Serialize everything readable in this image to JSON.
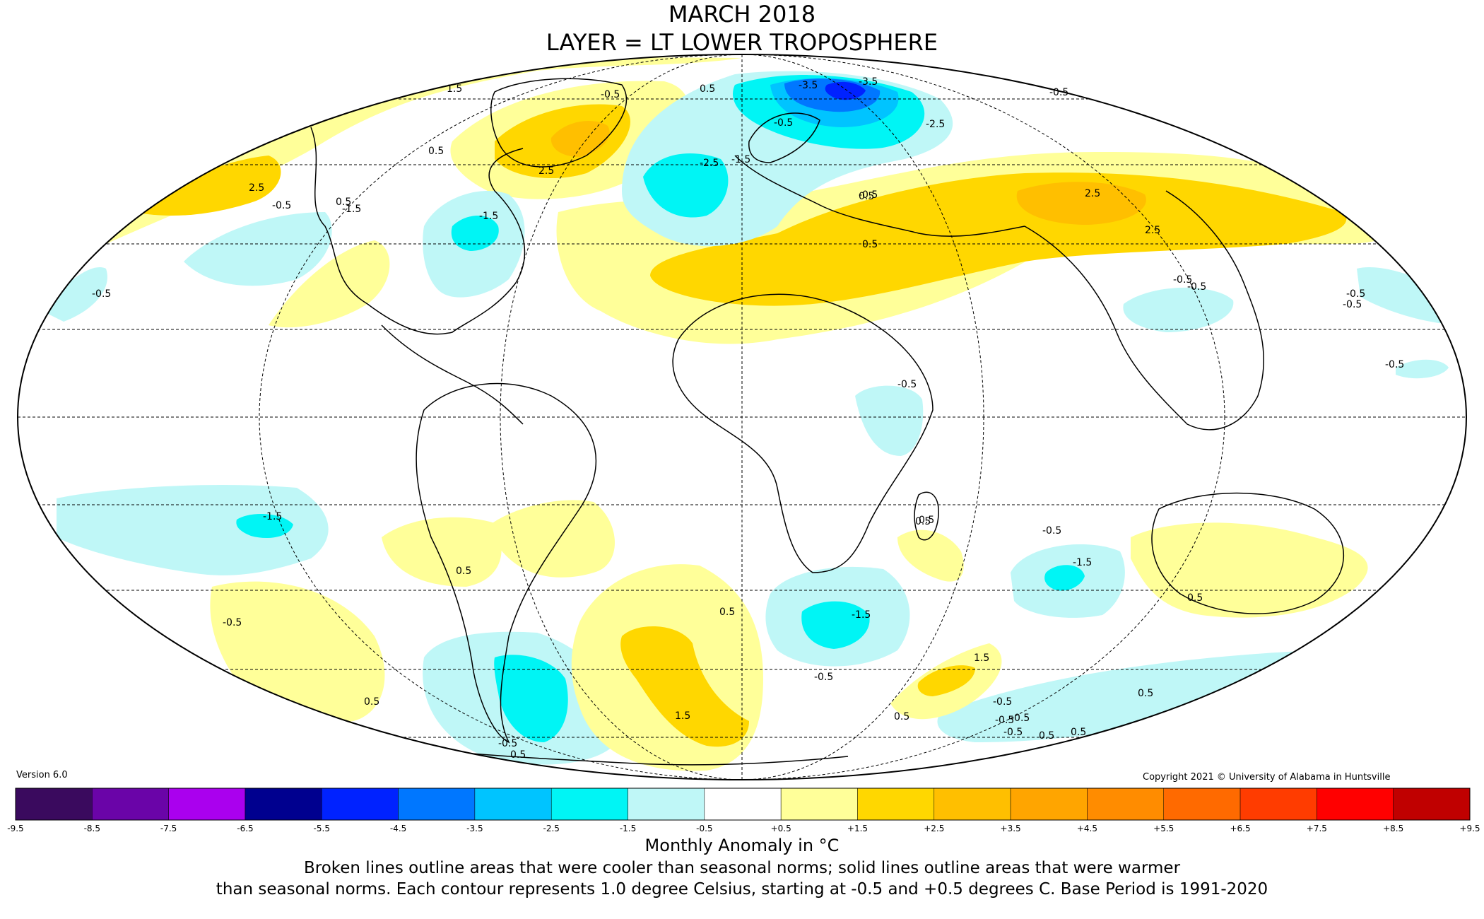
{
  "title_line1": "MARCH 2018",
  "title_line2": "LAYER = LT LOWER TROPOSPHERE",
  "version": "Version 6.0",
  "copyright": "Copyright 2021 © University of Alabama in Huntsville",
  "colorbar": {
    "label": "Monthly Anomaly in °C",
    "ticks": [
      "-9.5",
      "-8.5",
      "-7.5",
      "-6.5",
      "-5.5",
      "-4.5",
      "-3.5",
      "-2.5",
      "-1.5",
      "-0.5",
      "+0.5",
      "+1.5",
      "+2.5",
      "+3.5",
      "+4.5",
      "+5.5",
      "+6.5",
      "+7.5",
      "+8.5",
      "+9.5"
    ],
    "colors": [
      "#3a0a5e",
      "#6a04a8",
      "#aa00ee",
      "#00008f",
      "#0022ff",
      "#0077ff",
      "#00c4ff",
      "#00f5f5",
      "#bff7f7",
      "#ffffff",
      "#ffff99",
      "#ffd700",
      "#ffbf00",
      "#ffa500",
      "#ff8c00",
      "#ff6a00",
      "#ff3c00",
      "#ff0000",
      "#c00000"
    ]
  },
  "caption_line1": "Broken lines outline areas that were cooler than seasonal norms; solid lines outline areas that were warmer",
  "caption_line2": "than seasonal norms. Each contour represents 1.0 degree Celsius, starting at -0.5 and +0.5 degrees C. Base Period is 1991-2020",
  "map_colors": {
    "ocean": "#ffffff",
    "warm1": "#ffff99",
    "warm2": "#ffd700",
    "warm3": "#ffbf00",
    "cool1": "#bff7f7",
    "cool2": "#00f5f5",
    "cool3": "#00c4ff",
    "cool4": "#0077ff",
    "cool5": "#0022ff"
  },
  "contour_labels": [
    "1.5",
    "-0.5",
    "0.5",
    "2.5",
    "0.5",
    "2.5",
    "-0.5",
    "-1.5",
    "0.5",
    "-1.5",
    "-0.5",
    "-0.5",
    "-3.5",
    "-2.5",
    "-2.5",
    "-3.5",
    "-1.5",
    "-0.5",
    "0.5",
    "2.5",
    "2.5",
    "-0.5",
    "-0.5",
    "-0.5",
    "-0.5",
    "-1.5",
    "-0.5",
    "0.5",
    "-1.5",
    "-0.5",
    "0.5",
    "0.5",
    "1.5",
    "0.5",
    "-0.5",
    "-1.5",
    "-0.5",
    "1.5",
    "0.5",
    "-0.5",
    "0.5",
    "0.5",
    "-0.5",
    "-0.5",
    "0.5",
    "-0.5",
    "-0.5",
    "0.5",
    "0.5",
    "-0.5",
    "0.5",
    "0.5",
    "-0.5"
  ]
}
